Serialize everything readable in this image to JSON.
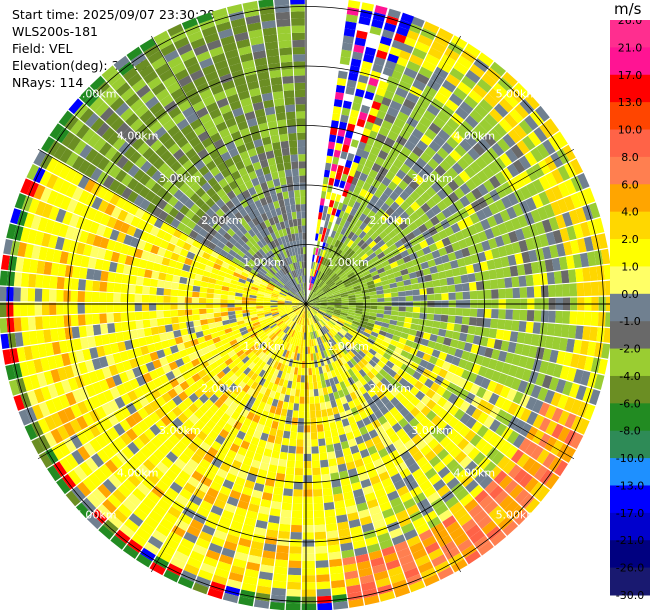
{
  "header": {
    "start_time": "Start time: 2025/09/07 23:30:28",
    "instrument": "WLS200s-181",
    "field": "Field: VEL",
    "elevation": "Elevation(deg): 35.00",
    "nrays": "NRays: 114"
  },
  "chart_data": {
    "type": "heatmap",
    "projection": "polar-ppi",
    "field": "VEL",
    "units": "m/s",
    "elevation_deg": 35.0,
    "n_rays": 114,
    "range_rings_km": [
      1,
      2,
      3,
      4,
      5
    ],
    "ring_labels": [
      "1.00km",
      "2.00km",
      "3.00km",
      "4.00km",
      "5.00km"
    ],
    "max_range_km": 5.2,
    "azimuth_gap_deg": [
      0,
      20
    ],
    "colorbar": {
      "label": "m/s",
      "ticks": [
        "26.0",
        "21.0",
        "17.0",
        "13.0",
        "10.0",
        "8.0",
        "6.0",
        "4.0",
        "2.0",
        "1.0",
        "0.0",
        "-1.0",
        "-2.0",
        "-4.0",
        "-6.0",
        "-8.0",
        "-10.0",
        "-13.0",
        "-17.0",
        "-21.0",
        "-26.0",
        "-30.0"
      ],
      "colors": [
        "#ff2e8f",
        "#ff1493",
        "#ff0000",
        "#ff4500",
        "#ff6347",
        "#ff7f50",
        "#ffa500",
        "#ffd700",
        "#ffff00",
        "#ffff66",
        "#708090",
        "#696969",
        "#9acd32",
        "#6b8e23",
        "#228b22",
        "#2e8b57",
        "#1e90ff",
        "#0000ff",
        "#0000cd",
        "#000080",
        "#191970"
      ]
    }
  }
}
